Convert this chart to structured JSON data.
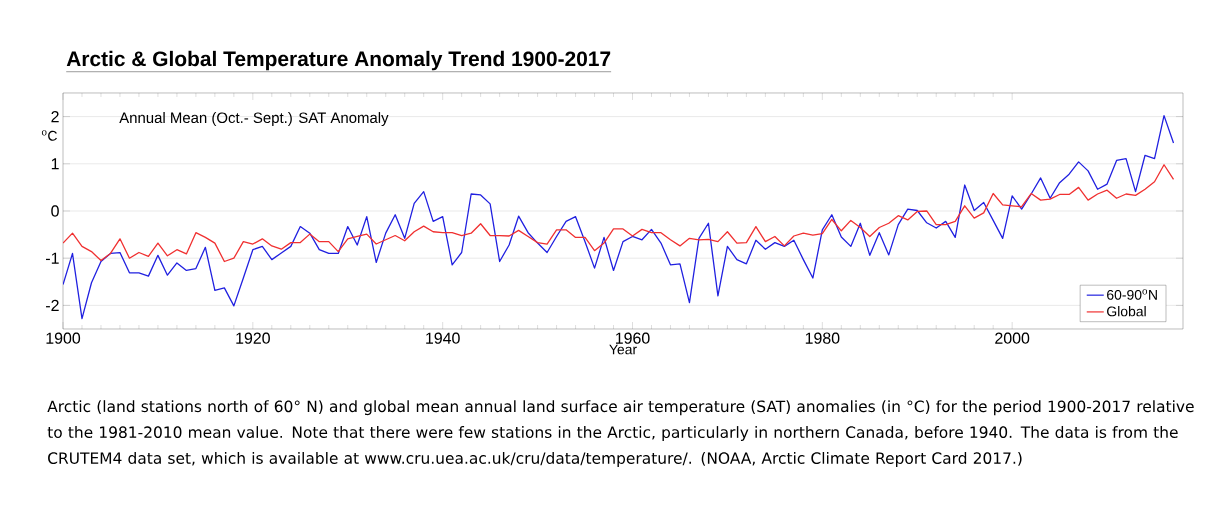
{
  "chart_data": {
    "type": "line",
    "title": "Arctic & Global Temperature Anomaly Trend 1900-2017",
    "xlabel": "Year",
    "ylabel": "$^{o}$C",
    "x": [
      1900,
      1901,
      1902,
      1903,
      1904,
      1905,
      1906,
      1907,
      1908,
      1909,
      1910,
      1911,
      1912,
      1913,
      1914,
      1915,
      1916,
      1917,
      1918,
      1919,
      1920,
      1921,
      1922,
      1923,
      1924,
      1925,
      1926,
      1927,
      1928,
      1929,
      1930,
      1931,
      1932,
      1933,
      1934,
      1935,
      1936,
      1937,
      1938,
      1939,
      1940,
      1941,
      1942,
      1943,
      1944,
      1945,
      1946,
      1947,
      1948,
      1949,
      1950,
      1951,
      1952,
      1953,
      1954,
      1955,
      1956,
      1957,
      1958,
      1959,
      1960,
      1961,
      1962,
      1963,
      1964,
      1965,
      1966,
      1967,
      1968,
      1969,
      1970,
      1971,
      1972,
      1973,
      1974,
      1975,
      1976,
      1977,
      1978,
      1979,
      1980,
      1981,
      1982,
      1983,
      1984,
      1985,
      1986,
      1987,
      1988,
      1989,
      1990,
      1991,
      1992,
      1993,
      1994,
      1995,
      1996,
      1997,
      1998,
      1999,
      2000,
      2001,
      2002,
      2003,
      2004,
      2005,
      2006,
      2007,
      2008,
      2009,
      2010,
      2011,
      2012,
      2013,
      2014,
      2015,
      2016,
      2017
    ],
    "series": [
      {
        "name": "60-90$^{o}$N",
        "color": "#2020e0",
        "values": [
          -1.56,
          -0.9,
          -2.28,
          -1.52,
          -1.07,
          -0.9,
          -0.88,
          -1.31,
          -1.31,
          -1.38,
          -0.94,
          -1.36,
          -1.1,
          -1.26,
          -1.22,
          -0.77,
          -1.68,
          -1.63,
          -2.01,
          -1.42,
          -0.82,
          -0.75,
          -1.03,
          -0.89,
          -0.75,
          -0.33,
          -0.47,
          -0.82,
          -0.9,
          -0.9,
          -0.33,
          -0.72,
          -0.12,
          -1.09,
          -0.47,
          -0.08,
          -0.58,
          0.16,
          0.41,
          -0.22,
          -0.12,
          -1.14,
          -0.88,
          0.36,
          0.34,
          0.15,
          -1.07,
          -0.72,
          -0.11,
          -0.46,
          -0.68,
          -0.88,
          -0.54,
          -0.22,
          -0.12,
          -0.65,
          -1.21,
          -0.56,
          -1.26,
          -0.65,
          -0.54,
          -0.61,
          -0.39,
          -0.68,
          -1.14,
          -1.12,
          -1.94,
          -0.58,
          -0.26,
          -1.8,
          -0.75,
          -1.03,
          -1.12,
          -0.62,
          -0.81,
          -0.67,
          -0.75,
          -0.62,
          -1.03,
          -1.42,
          -0.4,
          -0.08,
          -0.55,
          -0.75,
          -0.26,
          -0.94,
          -0.46,
          -0.93,
          -0.29,
          0.04,
          0.01,
          -0.25,
          -0.36,
          -0.22,
          -0.56,
          0.55,
          0.01,
          0.18,
          -0.2,
          -0.58,
          0.32,
          0.04,
          0.36,
          0.7,
          0.27,
          0.6,
          0.78,
          1.04,
          0.85,
          0.46,
          0.57,
          1.07,
          1.11,
          0.41,
          1.18,
          1.11,
          2.02,
          1.44
        ]
      },
      {
        "name": "Global",
        "color": "#f03030",
        "values": [
          -0.68,
          -0.47,
          -0.75,
          -0.86,
          -1.05,
          -0.9,
          -0.59,
          -1.0,
          -0.88,
          -0.96,
          -0.68,
          -0.95,
          -0.82,
          -0.91,
          -0.46,
          -0.56,
          -0.68,
          -1.07,
          -1.0,
          -0.65,
          -0.7,
          -0.59,
          -0.74,
          -0.81,
          -0.67,
          -0.67,
          -0.49,
          -0.65,
          -0.65,
          -0.86,
          -0.59,
          -0.54,
          -0.49,
          -0.7,
          -0.61,
          -0.52,
          -0.63,
          -0.44,
          -0.32,
          -0.44,
          -0.46,
          -0.46,
          -0.52,
          -0.47,
          -0.27,
          -0.52,
          -0.52,
          -0.53,
          -0.41,
          -0.54,
          -0.67,
          -0.7,
          -0.4,
          -0.4,
          -0.56,
          -0.56,
          -0.84,
          -0.68,
          -0.38,
          -0.38,
          -0.53,
          -0.39,
          -0.46,
          -0.46,
          -0.61,
          -0.74,
          -0.58,
          -0.61,
          -0.6,
          -0.65,
          -0.44,
          -0.68,
          -0.67,
          -0.33,
          -0.65,
          -0.54,
          -0.74,
          -0.53,
          -0.47,
          -0.51,
          -0.48,
          -0.18,
          -0.42,
          -0.2,
          -0.35,
          -0.54,
          -0.35,
          -0.26,
          -0.1,
          -0.19,
          -0.01,
          0,
          -0.29,
          -0.29,
          -0.22,
          0.11,
          -0.15,
          -0.04,
          0.37,
          0.13,
          0.11,
          0.09,
          0.37,
          0.23,
          0.25,
          0.35,
          0.35,
          0.5,
          0.23,
          0.36,
          0.44,
          0.27,
          0.36,
          0.33,
          0.46,
          0.62,
          0.98,
          0.67
        ]
      }
    ],
    "xlim": [
      1900,
      2018
    ],
    "xticks": [
      1900,
      1920,
      1940,
      1960,
      1980,
      2000
    ],
    "ylim": [
      -2.5,
      2.5
    ],
    "yticks": [
      -2,
      -1,
      0,
      1,
      2
    ],
    "grid": "y",
    "legend": "bottom right",
    "marker": "none",
    "line_style": "solid",
    "annotations": [
      "Annual Mean (Oct.- Sept.) SAT Anomaly",
      "Arctic (land stations north of 60° N) and global mean annual land surface air temperature (SAT) anomalies (in °C) for the period 1900-2017 relative to the 1981-2010 mean value. Note that there were few stations in the Arctic, particularly in northern Canada, before 1940. The data is from the CRUTEM4 data set, which is available at www.cru.uea.ac.uk/cru/data/temperature/. (NOAA, Arctic Climate Report Card 2017.)"
    ]
  }
}
